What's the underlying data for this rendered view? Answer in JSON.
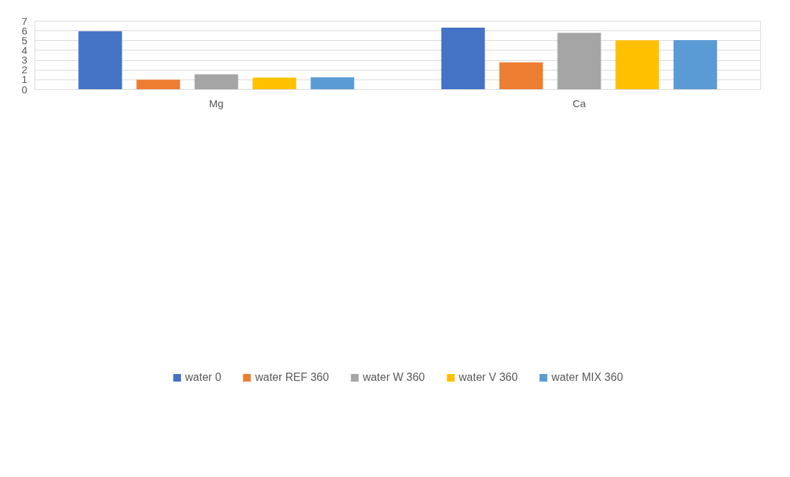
{
  "chart_data": {
    "type": "bar",
    "categories": [
      "Mg",
      "Ca"
    ],
    "series": [
      {
        "name": "water 0",
        "color": "#4472c4",
        "values": [
          5.95,
          6.32
        ]
      },
      {
        "name": "water REF 360",
        "color": "#ed7d31",
        "values": [
          1.0,
          2.78
        ]
      },
      {
        "name": "water W 360",
        "color": "#a5a5a5",
        "values": [
          1.56,
          5.79
        ]
      },
      {
        "name": "water V 360",
        "color": "#ffc000",
        "values": [
          1.22,
          5.03
        ]
      },
      {
        "name": "water MIX 360",
        "color": "#5b9bd5",
        "values": [
          1.25,
          5.06
        ]
      }
    ],
    "ylim": [
      0,
      7
    ],
    "yticks": [
      0,
      1,
      2,
      3,
      4,
      5,
      6,
      7
    ],
    "grid": "y",
    "legend": "bottom"
  }
}
